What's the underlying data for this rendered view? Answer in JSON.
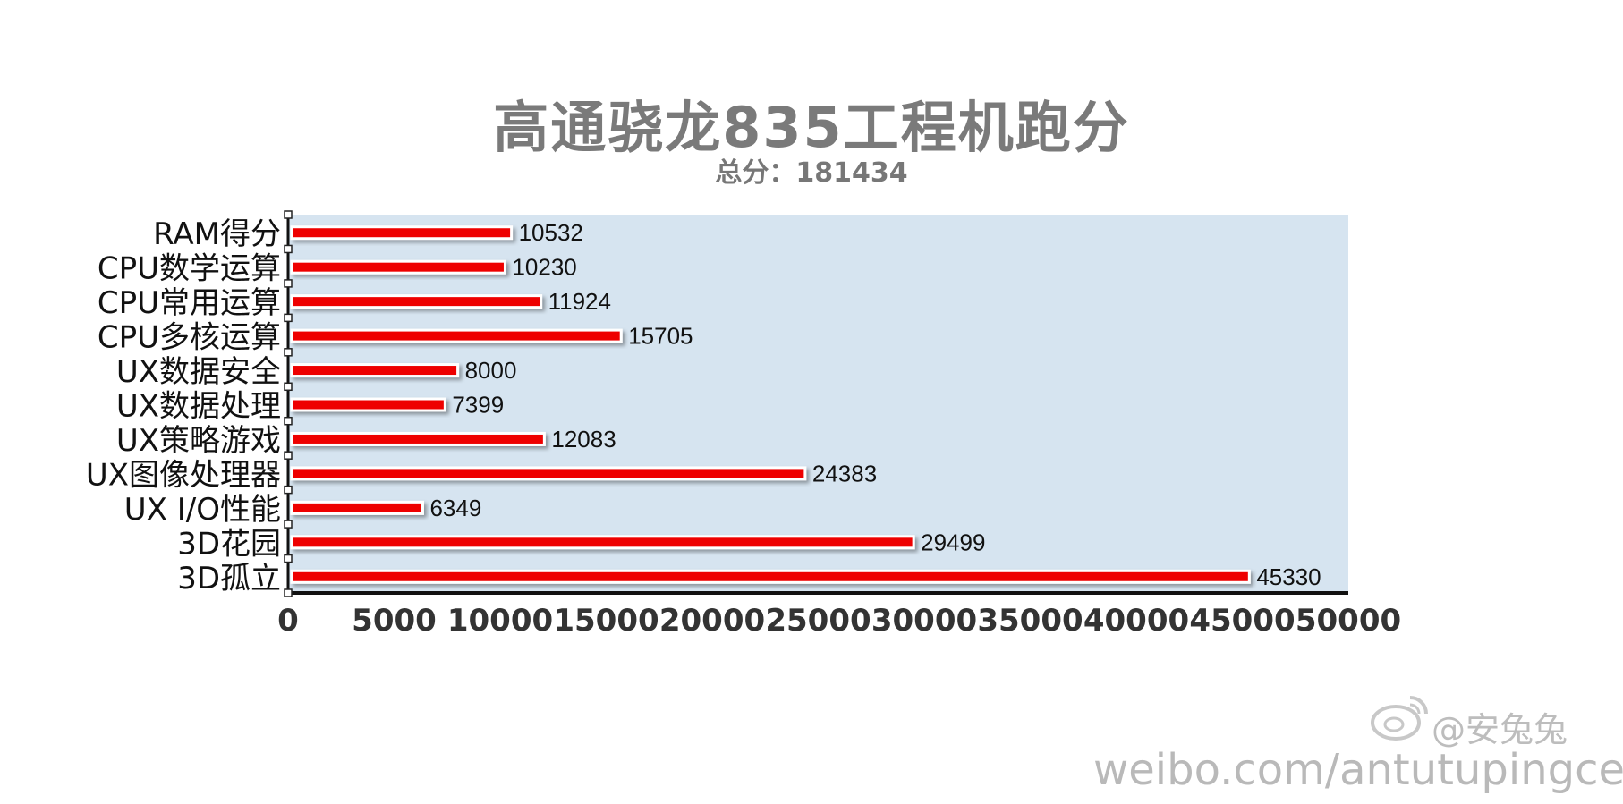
{
  "header": {
    "title": "高通骁龙835工程机跑分",
    "subtitle": "总分：181434"
  },
  "watermark": {
    "handle": "@安兔兔",
    "url": "weibo.com/antutupingce"
  },
  "colors": {
    "plot_background": "#d6e4f0",
    "bar_fill": "#ee0000",
    "bar_border": "#ffffff",
    "axis": "#111111",
    "title": "#7a7a7a"
  },
  "chart_data": {
    "type": "bar",
    "orientation": "horizontal",
    "categories": [
      "RAM得分",
      "CPU数学运算",
      "CPU常用运算",
      "CPU多核运算",
      "UX数据安全",
      "UX数据处理",
      "UX策略游戏",
      "UX图像处理器",
      "UX I/O性能",
      "3D花园",
      "3D孤立"
    ],
    "values": [
      10532,
      10230,
      11924,
      15705,
      8000,
      7399,
      12083,
      24383,
      6349,
      29499,
      45330
    ],
    "xlim": [
      0,
      50000
    ],
    "x_ticks": [
      0,
      5000,
      10000,
      15000,
      20000,
      25000,
      30000,
      35000,
      40000,
      45000,
      50000
    ],
    "grid": false,
    "data_labels": true
  }
}
